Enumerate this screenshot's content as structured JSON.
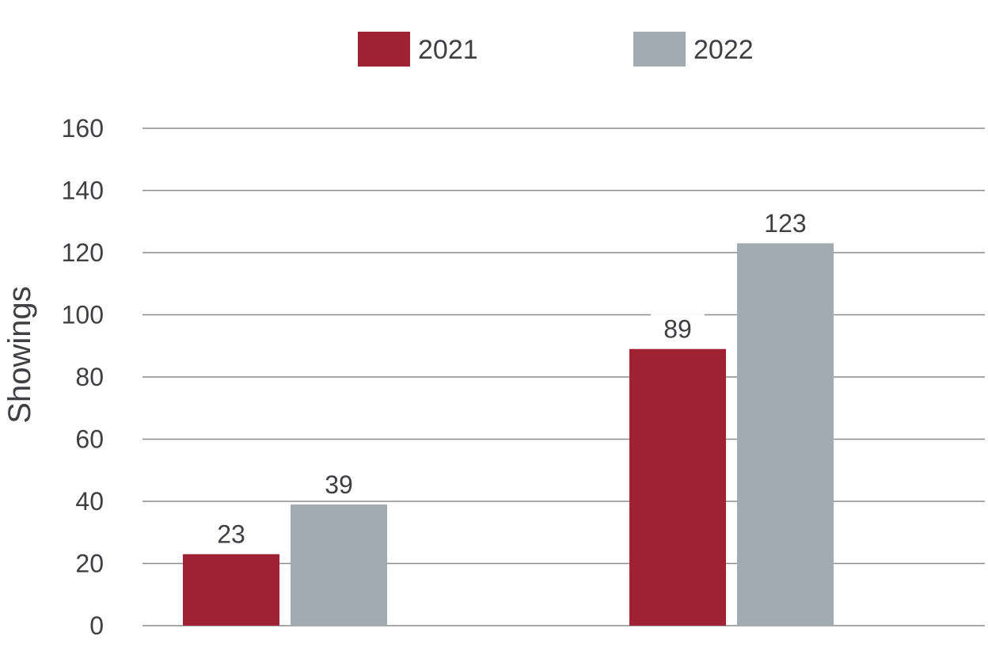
{
  "chart_data": {
    "type": "bar",
    "categories": [
      "",
      ""
    ],
    "series": [
      {
        "name": "2021",
        "values": [
          23,
          89
        ],
        "color": "#9e2233"
      },
      {
        "name": "2022",
        "values": [
          39,
          123
        ],
        "color": "#a2abb1"
      }
    ],
    "data_labels": [
      [
        "23",
        "89"
      ],
      [
        "39",
        "123"
      ]
    ],
    "ylabel": "Showings",
    "ylim": [
      0,
      160
    ],
    "yticks": [
      0,
      20,
      40,
      60,
      80,
      100,
      120,
      140,
      160
    ],
    "grid": true,
    "legend": "top-center"
  }
}
